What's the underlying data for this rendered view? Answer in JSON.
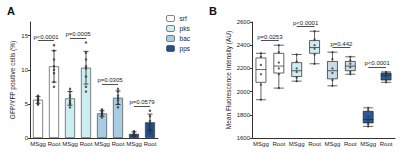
{
  "chart_data": [
    {
      "type": "bar",
      "title": "A",
      "y_label": "GFP/YFP positive cells (%)",
      "categories": [
        "MSgg",
        "Root",
        "MSgg",
        "Root",
        "MSgg",
        "Root",
        "MSgg",
        "Root"
      ],
      "ylim": [
        0,
        17
      ],
      "yticks": [
        0,
        5,
        10,
        15
      ],
      "grid": false,
      "legend": "upper right",
      "series": [
        {
          "name": "srf",
          "color": "#ffffff",
          "p_value": "p<0.0001",
          "values": [
            5.6,
            10.5,
            null,
            null,
            null,
            null,
            null,
            null
          ],
          "errors": [
            0.5,
            2.3,
            null,
            null,
            null,
            null,
            null,
            null
          ],
          "points": [
            [
              5.0,
              5.3,
              5.5,
              5.6,
              5.8,
              6.0,
              6.2,
              4.9
            ],
            [
              7.5,
              8.2,
              9.5,
              10.5,
              11.5,
              12.8,
              13.6,
              10.0
            ],
            null,
            null,
            null,
            null,
            null,
            null
          ]
        },
        {
          "name": "pks",
          "color": "#cdeef0",
          "p_value": "p=0.0005",
          "values": [
            null,
            null,
            5.8,
            10.3,
            null,
            null,
            null,
            null
          ],
          "errors": [
            null,
            null,
            1.0,
            2.4,
            null,
            null,
            null,
            null
          ],
          "points": [
            null,
            null,
            [
              4.5,
              5.0,
              5.5,
              6.0,
              6.3,
              6.8,
              7.2,
              5.2
            ],
            [
              6.8,
              7.5,
              9.0,
              10.2,
              11.5,
              12.5,
              14.0,
              10.5
            ],
            null,
            null,
            null,
            null
          ]
        },
        {
          "name": "bac",
          "color": "#a8cde0",
          "p_value": "p=0.0305",
          "values": [
            null,
            null,
            null,
            null,
            3.6,
            5.9,
            null,
            null
          ],
          "errors": [
            null,
            null,
            null,
            null,
            0.4,
            1.0,
            null,
            null
          ],
          "points": [
            null,
            null,
            null,
            null,
            [
              3.0,
              3.3,
              3.5,
              3.6,
              3.8,
              4.0,
              4.2
            ],
            [
              4.5,
              5.0,
              5.8,
              6.2,
              6.8,
              7.2,
              5.5
            ],
            null,
            null
          ]
        },
        {
          "name": "pps",
          "color": "#1f4f8f",
          "p_value": "p=0.0579",
          "values": [
            null,
            null,
            null,
            null,
            null,
            null,
            0.6,
            2.3
          ],
          "errors": [
            null,
            null,
            null,
            null,
            null,
            null,
            0.3,
            1.2
          ],
          "points": [
            null,
            null,
            null,
            null,
            null,
            null,
            [
              0.2,
              0.4,
              0.5,
              0.6,
              0.8,
              1.0
            ],
            [
              0.8,
              1.2,
              2.0,
              2.5,
              3.2,
              4.0
            ]
          ]
        }
      ]
    },
    {
      "type": "boxplot",
      "title": "B",
      "y_label": "Mean Fluorescence Intensity (AU)",
      "categories": [
        "MSgg",
        "Root",
        "MSgg",
        "Root",
        "MSgg",
        "Root",
        "MSgg",
        "Root"
      ],
      "ylim": [
        1600,
        2600
      ],
      "yticks": [
        1600,
        1800,
        2000,
        2200,
        2400,
        2600
      ],
      "grid": false,
      "colors": [
        "#ffffff",
        "#ffffff",
        "#cdeef0",
        "#cdeef0",
        "#c9dbe8",
        "#c9dbe8",
        "#2c5a94",
        "#2c5a94"
      ],
      "boxes": [
        [
          1930,
          2080,
          2190,
          2290,
          2330
        ],
        [
          2030,
          2160,
          2220,
          2330,
          2400
        ],
        [
          2090,
          2130,
          2180,
          2250,
          2320
        ],
        [
          2240,
          2330,
          2380,
          2440,
          2520
        ],
        [
          2050,
          2110,
          2180,
          2260,
          2340
        ],
        [
          2150,
          2180,
          2220,
          2260,
          2300
        ],
        [
          1700,
          1730,
          1760,
          1830,
          1860
        ],
        [
          2080,
          2100,
          2140,
          2160,
          2170
        ]
      ],
      "points": [
        [
          1930,
          2060,
          2150,
          2230,
          2300,
          2330
        ],
        [
          2030,
          2150,
          2200,
          2250,
          2340,
          2400
        ],
        [
          2090,
          2120,
          2170,
          2200,
          2260,
          2320
        ],
        [
          2240,
          2320,
          2370,
          2400,
          2450,
          2520
        ],
        [
          2050,
          2100,
          2160,
          2200,
          2280,
          2340
        ],
        [
          2150,
          2170,
          2210,
          2240,
          2270,
          2300
        ],
        [
          1700,
          1720,
          1750,
          1780,
          1840,
          1860
        ],
        [
          2080,
          2100,
          2130,
          2150,
          2160,
          2170
        ]
      ],
      "p_values": [
        "p=0.0253",
        "p<0.0001",
        "p=0.442",
        "p<0.0001"
      ]
    }
  ]
}
